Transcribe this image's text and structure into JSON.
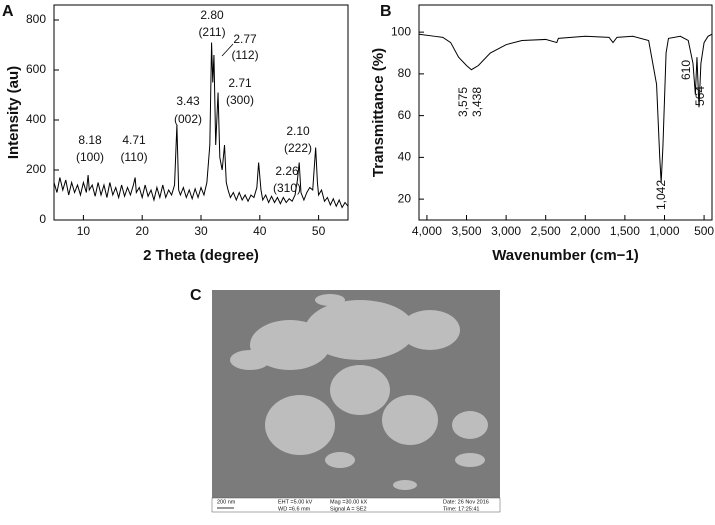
{
  "chart_data": [
    {
      "type": "line",
      "panel": "A",
      "xlabel": "2 Theta (degree)",
      "ylabel": "Intensity (au)",
      "color": "#000000",
      "xlim": [
        5,
        55
      ],
      "xticks": [
        10,
        20,
        30,
        40,
        50
      ],
      "ylim": [
        0,
        860
      ],
      "yticks": [
        0,
        200,
        400,
        600,
        800
      ],
      "x": [
        5,
        5.5,
        6,
        6.5,
        7,
        7.5,
        8,
        8.5,
        9,
        9.5,
        10,
        10.5,
        10.8,
        11,
        11.5,
        12,
        12.5,
        13,
        13.5,
        14,
        14.5,
        15,
        15.5,
        16,
        16.5,
        17,
        17.5,
        18,
        18.5,
        18.8,
        19,
        19.5,
        20,
        20.5,
        21,
        21.5,
        22,
        22.5,
        23,
        23.5,
        24,
        24.5,
        25,
        25.5,
        25.9,
        26.2,
        26.5,
        27,
        27.5,
        28,
        28.5,
        29,
        29.5,
        30,
        30.5,
        31,
        31.5,
        31.8,
        32,
        32.2,
        32.5,
        32.9,
        33.2,
        33.6,
        34,
        34.3,
        34.6,
        35,
        35.5,
        36,
        36.5,
        37,
        37.5,
        38,
        38.5,
        39,
        39.5,
        39.8,
        40.2,
        40.5,
        41,
        41.5,
        42,
        42.5,
        43,
        43.5,
        44,
        44.5,
        45,
        45.5,
        46,
        46.4,
        46.7,
        47,
        47.5,
        48,
        48.5,
        49,
        49.5,
        49.8,
        50,
        50.5,
        51,
        51.5,
        52,
        52.5,
        53,
        53.5,
        54,
        54.5,
        55
      ],
      "values": [
        150,
        110,
        170,
        120,
        160,
        100,
        150,
        110,
        140,
        100,
        150,
        110,
        180,
        120,
        140,
        95,
        150,
        100,
        140,
        90,
        150,
        100,
        130,
        90,
        140,
        95,
        130,
        100,
        140,
        170,
        110,
        130,
        90,
        140,
        95,
        120,
        80,
        130,
        90,
        140,
        90,
        120,
        100,
        140,
        380,
        120,
        100,
        130,
        90,
        120,
        85,
        125,
        90,
        130,
        100,
        150,
        300,
        710,
        550,
        660,
        300,
        510,
        250,
        200,
        300,
        150,
        120,
        90,
        110,
        80,
        110,
        80,
        100,
        75,
        100,
        90,
        130,
        230,
        120,
        80,
        100,
        70,
        95,
        70,
        90,
        65,
        90,
        70,
        85,
        75,
        100,
        160,
        230,
        110,
        80,
        110,
        130,
        120,
        290,
        150,
        100,
        120,
        75,
        90,
        60,
        85,
        55,
        80,
        50,
        70,
        55
      ],
      "annotations": [
        [
          "8.18",
          "(100)"
        ],
        [
          "4.71",
          "(110)"
        ],
        [
          "3.43",
          "(002)"
        ],
        [
          "2.80",
          "(211)"
        ],
        [
          "2.77",
          "(112)"
        ],
        [
          "2.71",
          "(300)"
        ],
        [
          "2.26",
          "(310)"
        ],
        [
          "2.10",
          "(222)"
        ]
      ]
    },
    {
      "type": "line",
      "panel": "B",
      "xlabel": "Wavenumber (cm−1)",
      "ylabel": "Transmittance (%)",
      "color": "#000000",
      "xlim": [
        4100,
        400
      ],
      "xticks": [
        {
          "value": 4000,
          "label": "4,000"
        },
        {
          "value": 3500,
          "label": "3,500"
        },
        {
          "value": 3000,
          "label": "3,000"
        },
        {
          "value": 2500,
          "label": "2,500"
        },
        {
          "value": 2000,
          "label": "2,000"
        },
        {
          "value": 1500,
          "label": "1,500"
        },
        {
          "value": 1000,
          "label": "1,000"
        },
        500
      ],
      "ylim": [
        10,
        113
      ],
      "yticks": [
        20,
        40,
        60,
        80,
        100
      ],
      "x": [
        4100,
        3900,
        3800,
        3700,
        3600,
        3500,
        3438,
        3350,
        3200,
        3000,
        2800,
        2500,
        2360,
        2340,
        2000,
        1700,
        1650,
        1600,
        1400,
        1200,
        1100,
        1060,
        1042,
        1020,
        980,
        950,
        800,
        700,
        640,
        610,
        590,
        564,
        540,
        500,
        450,
        400
      ],
      "values": [
        99,
        98,
        97.5,
        95,
        88,
        84,
        82,
        84,
        90,
        94,
        96,
        96.5,
        95,
        97,
        98,
        97.5,
        95,
        97.5,
        98,
        96,
        75,
        40,
        28,
        45,
        90,
        97,
        98,
        96,
        85,
        70,
        88,
        64,
        85,
        95,
        98,
        99
      ],
      "annotations": [
        [
          "3,575"
        ],
        [
          "3,438"
        ],
        [
          "1,042"
        ],
        [
          "610"
        ],
        [
          "564"
        ]
      ]
    }
  ],
  "image_panel": {
    "panel": "C",
    "scale_bar": "200 nm",
    "info": [
      "EHT =5.00 kV",
      "WD =6.6 mm",
      "Mag =30.00 kX",
      "Signal A = SE2",
      "Date: 26 Nov 2016",
      "Time: 17:25:41"
    ]
  }
}
